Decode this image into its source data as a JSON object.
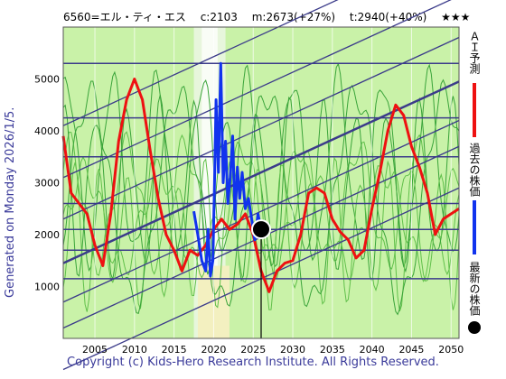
{
  "header": {
    "code_name": "6560=エル・ティ・エス",
    "current": "c:2103",
    "mean": "m:2673(+27%)",
    "target": "t:2940(+40%)",
    "rating": "★★★"
  },
  "side_label": "Generated on Monday 2026/1/5.",
  "copyright": "Copyright (c) Kids-Hero Research Institute. All Rights Reserved.",
  "legend": {
    "ai_forecast": "ＡＩ予測",
    "past_price": "過去の株価",
    "latest_price": "最新の株価",
    "ai_color": "#ee1111",
    "past_color": "#1133ee",
    "latest_color": "#000000"
  },
  "chart_data": {
    "type": "line",
    "xlim": [
      2001,
      2051
    ],
    "ylim": [
      0,
      6000
    ],
    "x_ticks": [
      2005,
      2010,
      2015,
      2020,
      2025,
      2030,
      2035,
      2040,
      2045,
      2050
    ],
    "y_ticks": [
      1000,
      2000,
      3000,
      4000,
      5000
    ],
    "horizontal_levels": [
      1150,
      1700,
      2100,
      2600,
      3500,
      4250,
      5300
    ],
    "series": [
      {
        "key": "ai_forecast",
        "x": [
          2001,
          2002,
          2003,
          2004,
          2005,
          2006,
          2007,
          2008,
          2009,
          2010,
          2011,
          2012,
          2013,
          2014,
          2015,
          2016,
          2017,
          2018,
          2019,
          2020,
          2021,
          2022,
          2023,
          2024,
          2025,
          2026,
          2027,
          2028,
          2029,
          2030,
          2031,
          2032,
          2033,
          2034,
          2035,
          2036,
          2037,
          2038,
          2039,
          2040,
          2041,
          2042,
          2043,
          2044,
          2045,
          2046,
          2047,
          2048,
          2049,
          2050,
          2051
        ],
        "values": [
          3900,
          2800,
          2600,
          2400,
          1800,
          1400,
          2400,
          3800,
          4600,
          5000,
          4600,
          3600,
          2700,
          2000,
          1700,
          1300,
          1700,
          1600,
          1800,
          2100,
          2300,
          2100,
          2200,
          2400,
          2000,
          1300,
          900,
          1300,
          1450,
          1500,
          2000,
          2800,
          2900,
          2800,
          2300,
          2050,
          1900,
          1550,
          1700,
          2500,
          3200,
          4000,
          4500,
          4300,
          3700,
          3300,
          2800,
          2000,
          2300,
          2400,
          2500
        ]
      },
      {
        "key": "past_price",
        "x": [
          2017.5,
          2018,
          2018.5,
          2019,
          2019.3,
          2019.6,
          2019.9,
          2020.1,
          2020.3,
          2020.6,
          2020.9,
          2021.2,
          2021.5,
          2021.8,
          2022.1,
          2022.4,
          2022.7,
          2023,
          2023.3,
          2023.6,
          2024,
          2024.4,
          2024.8,
          2025.2,
          2025.6,
          2026
        ],
        "values": [
          2450,
          2000,
          1500,
          1300,
          2100,
          1200,
          1500,
          2900,
          4600,
          3200,
          5300,
          3000,
          3800,
          2600,
          3100,
          3900,
          2300,
          3300,
          2700,
          3200,
          2500,
          2700,
          2300,
          1900,
          2400,
          2103
        ]
      }
    ],
    "latest_point": {
      "x": 2026,
      "y": 2103
    }
  }
}
